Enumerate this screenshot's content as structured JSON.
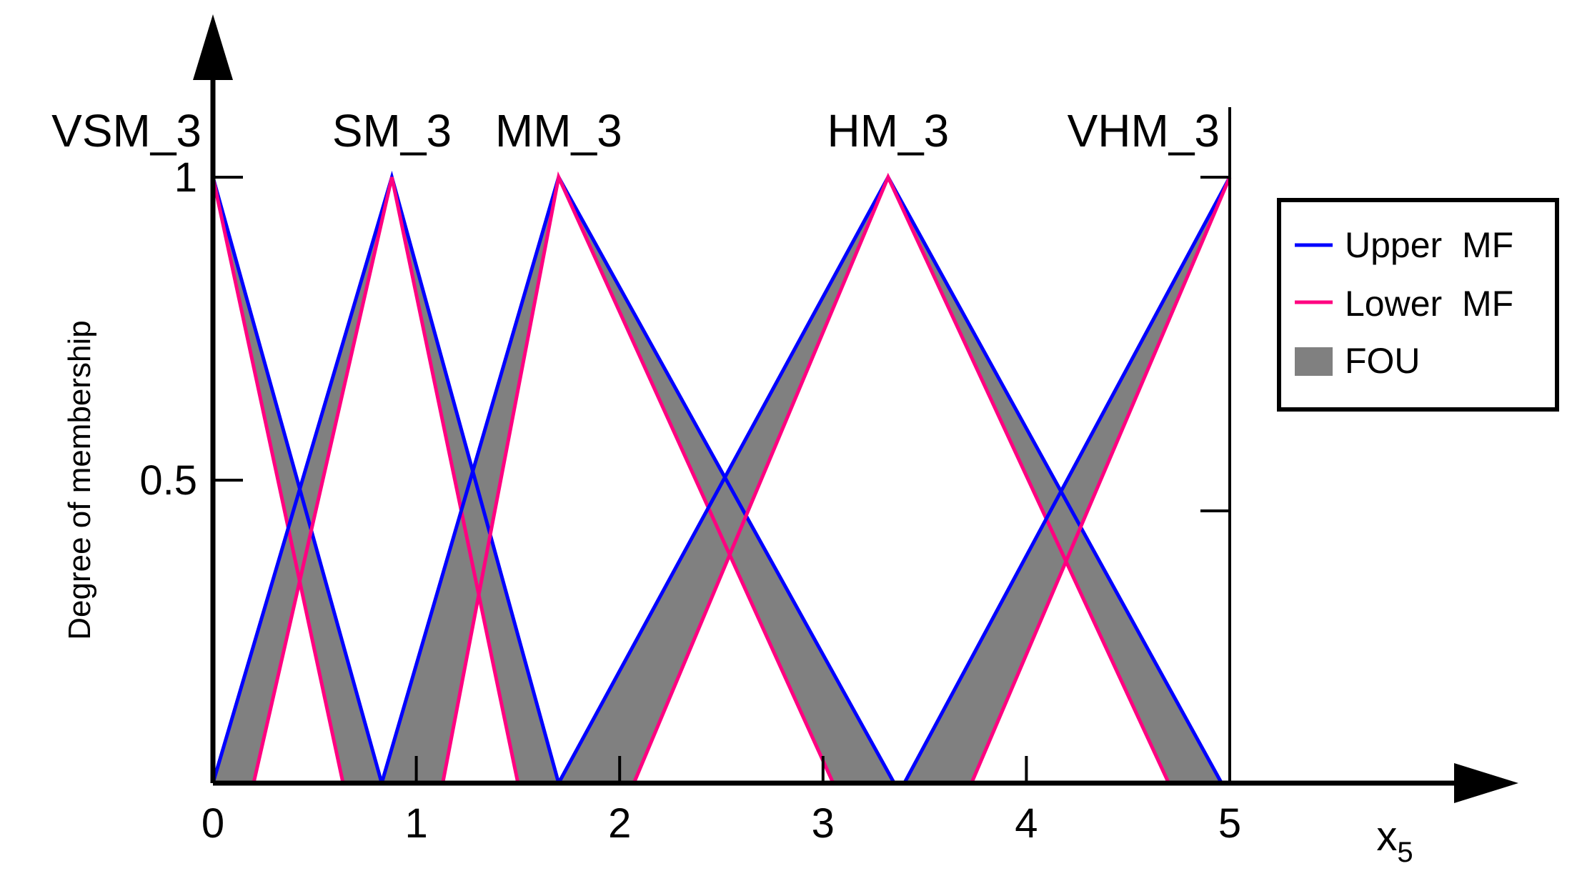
{
  "chart_data": {
    "type": "line",
    "xlabel": "x",
    "xlabel_sub": "5",
    "ylabel": "Degree of membership",
    "xlim": [
      0,
      5
    ],
    "ylim": [
      0,
      1
    ],
    "x_ticks": [
      "0",
      "1",
      "2",
      "3",
      "4",
      "5"
    ],
    "y_ticks": [
      "0.5",
      "1"
    ],
    "legend": {
      "position": "top-right",
      "items": [
        {
          "label": "Upper  MF",
          "color": "#0000ff",
          "kind": "line"
        },
        {
          "label": "Lower  MF",
          "color": "#ff0080",
          "kind": "line"
        },
        {
          "label": "FOU",
          "color": "#808080",
          "kind": "patch"
        }
      ]
    },
    "colors": {
      "upper": "#0000ff",
      "lower": "#ff0080",
      "fou": "#808080"
    },
    "sets": [
      {
        "name": "VSM_3",
        "peak": 0.0,
        "upper": [
          [
            0,
            1
          ],
          [
            0.0,
            1
          ],
          [
            0.83,
            0
          ]
        ],
        "lower": [
          [
            0,
            1
          ],
          [
            0.0,
            1
          ],
          [
            0.64,
            0
          ]
        ]
      },
      {
        "name": "SM_3",
        "peak": 0.88,
        "upper": [
          [
            0.0,
            0
          ],
          [
            0.88,
            1
          ],
          [
            1.7,
            0
          ]
        ],
        "lower": [
          [
            0.2,
            0
          ],
          [
            0.88,
            1
          ],
          [
            1.5,
            0
          ]
        ]
      },
      {
        "name": "MM_3",
        "peak": 1.7,
        "upper": [
          [
            0.83,
            0
          ],
          [
            1.7,
            1
          ],
          [
            3.35,
            0
          ]
        ],
        "lower": [
          [
            1.13,
            0
          ],
          [
            1.7,
            1
          ],
          [
            3.05,
            0
          ]
        ]
      },
      {
        "name": "HM_3",
        "peak": 3.32,
        "upper": [
          [
            1.7,
            0
          ],
          [
            3.32,
            1
          ],
          [
            4.96,
            0
          ]
        ],
        "lower": [
          [
            2.07,
            0
          ],
          [
            3.32,
            1
          ],
          [
            4.7,
            0
          ]
        ]
      },
      {
        "name": "VHM_3",
        "peak": 5.0,
        "upper": [
          [
            3.4,
            0
          ],
          [
            5.0,
            1
          ],
          [
            5,
            1
          ]
        ],
        "lower": [
          [
            3.73,
            0
          ],
          [
            5.0,
            1
          ],
          [
            5,
            1
          ]
        ]
      }
    ]
  }
}
